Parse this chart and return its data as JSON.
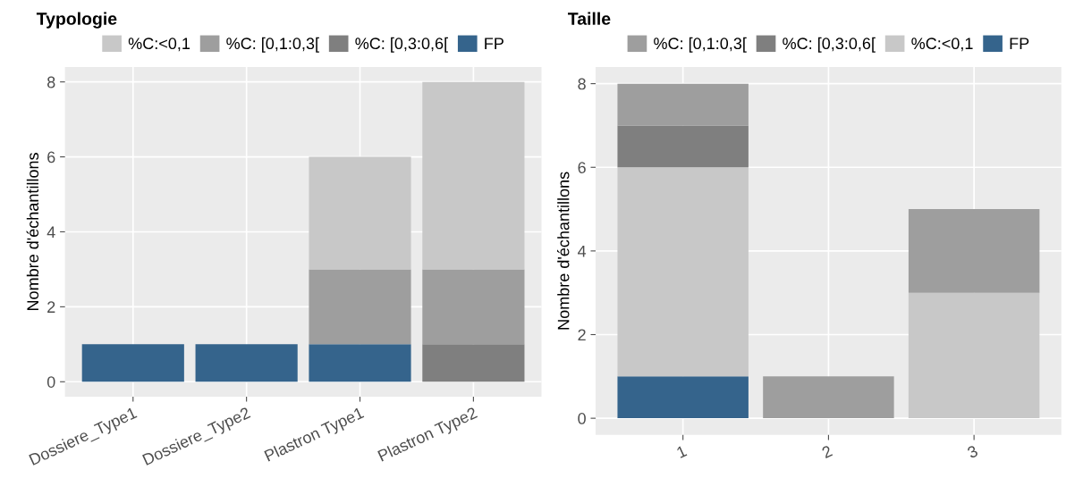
{
  "chart_data": [
    {
      "type": "bar",
      "title": "Typologie",
      "ylabel": "Nombre d'échantillons",
      "categories": [
        "Dossiere_Type1",
        "Dossiere_Type2",
        "Plastron Type1",
        "Plastron Type2"
      ],
      "stacked": true,
      "ylim": [
        -0.4,
        8.4
      ],
      "yticks": [
        0,
        2,
        4,
        6,
        8
      ],
      "grid": true,
      "legend": "top",
      "series": [
        {
          "name": "FP",
          "color": "#35648c",
          "values": [
            1,
            1,
            1,
            null
          ]
        },
        {
          "name": "%C: [0,3:0,6[",
          "color": "#7f7f7f",
          "values": [
            null,
            null,
            null,
            1
          ]
        },
        {
          "name": "%C: [0,1:0,3[",
          "color": "#9e9e9e",
          "values": [
            null,
            null,
            2,
            2
          ]
        },
        {
          "name": "%C:<0,1",
          "color": "#c8c8c8",
          "values": [
            null,
            null,
            3,
            5
          ]
        }
      ]
    },
    {
      "type": "bar",
      "title": "Taille",
      "ylabel": "Nombre d'échantillons",
      "categories": [
        "1",
        "2",
        "3"
      ],
      "stacked": true,
      "ylim": [
        -0.4,
        8.4
      ],
      "yticks": [
        0,
        2,
        4,
        6,
        8
      ],
      "grid": true,
      "legend": "top",
      "series": [
        {
          "name": "FP",
          "color": "#35648c",
          "values": [
            1,
            null,
            null
          ]
        },
        {
          "name": "%C:<0,1",
          "color": "#c8c8c8",
          "values": [
            5,
            null,
            3
          ]
        },
        {
          "name": "%C: [0,3:0,6[",
          "color": "#7f7f7f",
          "values": [
            1,
            null,
            null
          ]
        },
        {
          "name": "%C: [0,1:0,3[",
          "color": "#9e9e9e",
          "values": [
            1,
            1,
            2
          ]
        }
      ]
    }
  ]
}
